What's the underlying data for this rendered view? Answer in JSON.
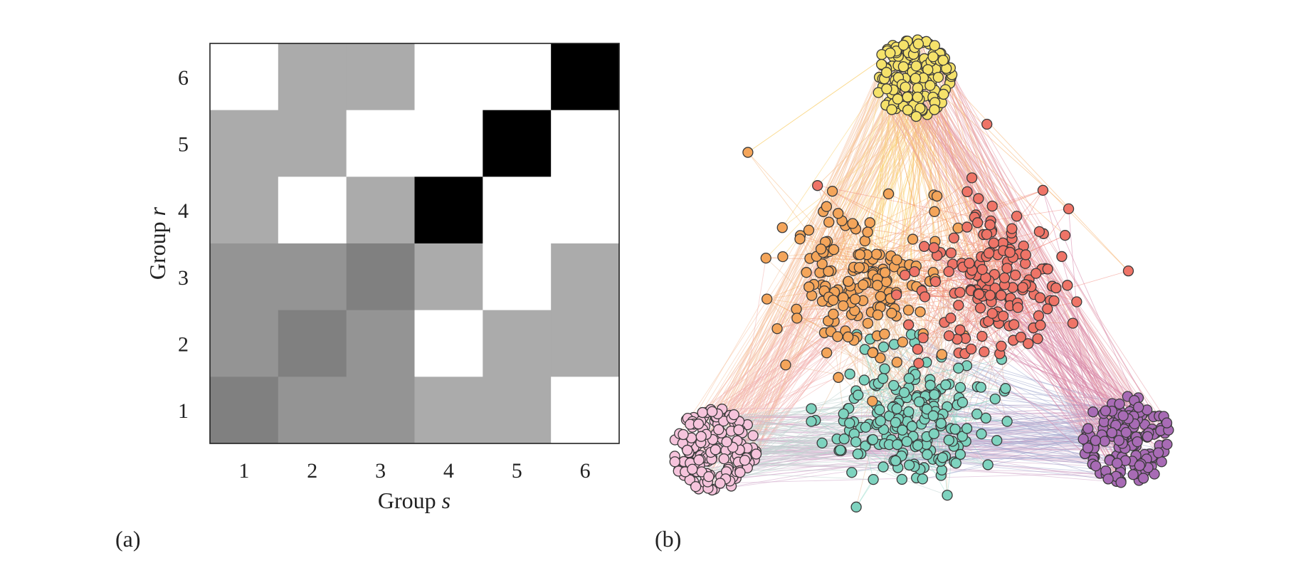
{
  "panels": {
    "a": {
      "label": "(a)"
    },
    "b": {
      "label": "(b)"
    }
  },
  "chart_data": [
    {
      "type": "heatmap",
      "panel": "(a)",
      "xlabel_prefix": "Group ",
      "xlabel_var": "s",
      "ylabel_prefix": "Group ",
      "ylabel_var": "r",
      "x_categories": [
        "1",
        "2",
        "3",
        "4",
        "5",
        "6"
      ],
      "y_categories": [
        "1",
        "2",
        "3",
        "4",
        "5",
        "6"
      ],
      "colormap": "grayscale, darker = higher",
      "rows": [
        {
          "r": "6",
          "values": [
            0.0,
            0.33,
            0.33,
            0.0,
            0.0,
            1.0
          ]
        },
        {
          "r": "5",
          "values": [
            0.33,
            0.33,
            0.0,
            0.0,
            1.0,
            0.0
          ]
        },
        {
          "r": "4",
          "values": [
            0.33,
            0.0,
            0.33,
            1.0,
            0.0,
            0.0
          ]
        },
        {
          "r": "3",
          "values": [
            0.42,
            0.42,
            0.5,
            0.33,
            0.0,
            0.33
          ]
        },
        {
          "r": "2",
          "values": [
            0.42,
            0.5,
            0.42,
            0.0,
            0.33,
            0.33
          ]
        },
        {
          "r": "1",
          "values": [
            0.5,
            0.42,
            0.42,
            0.33,
            0.33,
            0.0
          ]
        }
      ]
    },
    {
      "type": "network",
      "panel": "(b)",
      "groups": [
        {
          "id": "yellow",
          "color": "#f5e26a",
          "layout": "dense",
          "nodes": 150
        },
        {
          "id": "orange",
          "color": "#f4a55a",
          "layout": "loose",
          "nodes": 160
        },
        {
          "id": "red",
          "color": "#ef7467",
          "layout": "loose",
          "nodes": 160
        },
        {
          "id": "teal",
          "color": "#7ed3bf",
          "layout": "loose",
          "nodes": 190
        },
        {
          "id": "pink",
          "color": "#f6c4dc",
          "layout": "dense",
          "nodes": 150
        },
        {
          "id": "purple",
          "color": "#a86bb5",
          "layout": "dense",
          "nodes": 150
        }
      ],
      "edge_colors": {
        "yellow-orange": "#f9cf6e",
        "yellow-red": "#f6b16e",
        "yellow-pink": "#f5c3a0",
        "yellow-purple": "#e59aa6",
        "orange-red": "#f29a73",
        "orange-teal": "#e9c2a0",
        "red-teal": "#e0b2a8",
        "pink-purple": "#cfa6c9",
        "teal-purple": "#a3a9cf",
        "red-purple": "#d682a5",
        "orange-pink": "#f3b3b0",
        "teal-pink": "#bfd4d0"
      }
    }
  ]
}
